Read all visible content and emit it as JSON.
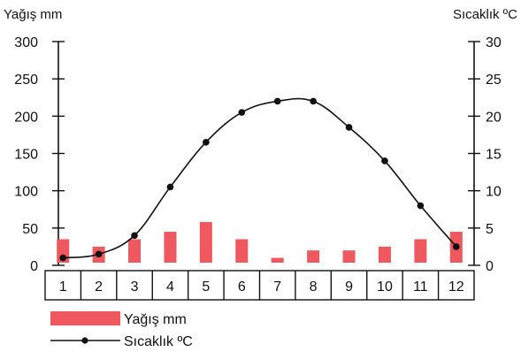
{
  "chart_data": {
    "type": "bar+line",
    "title": "",
    "left_axis": {
      "label": "Yağış mm",
      "ticks": [
        0,
        50,
        100,
        150,
        200,
        250,
        300
      ],
      "range": [
        0,
        300
      ]
    },
    "right_axis": {
      "label": "Sıcaklık ºC",
      "ticks": [
        0,
        5,
        10,
        15,
        20,
        25,
        30
      ],
      "range": [
        0,
        30
      ]
    },
    "categories": [
      "1",
      "2",
      "3",
      "4",
      "5",
      "6",
      "7",
      "8",
      "9",
      "10",
      "11",
      "12"
    ],
    "series": [
      {
        "name": "Yağış mm",
        "type": "bar",
        "axis": "left",
        "color": "#f0585f",
        "values": [
          35,
          25,
          35,
          45,
          58,
          35,
          10,
          20,
          20,
          25,
          35,
          45
        ]
      },
      {
        "name": "Sıcaklık ºC",
        "type": "line",
        "axis": "right",
        "color": "#111111",
        "values": [
          1,
          1.5,
          4,
          10.5,
          16.5,
          20.5,
          22,
          22,
          18.5,
          14,
          8,
          2.5
        ]
      }
    ],
    "legend": {
      "placement": "bottom-left",
      "items": [
        {
          "label": "Yağış mm",
          "kind": "bar"
        },
        {
          "label": "Sıcaklık ºC",
          "kind": "line"
        }
      ]
    },
    "grid": false
  }
}
